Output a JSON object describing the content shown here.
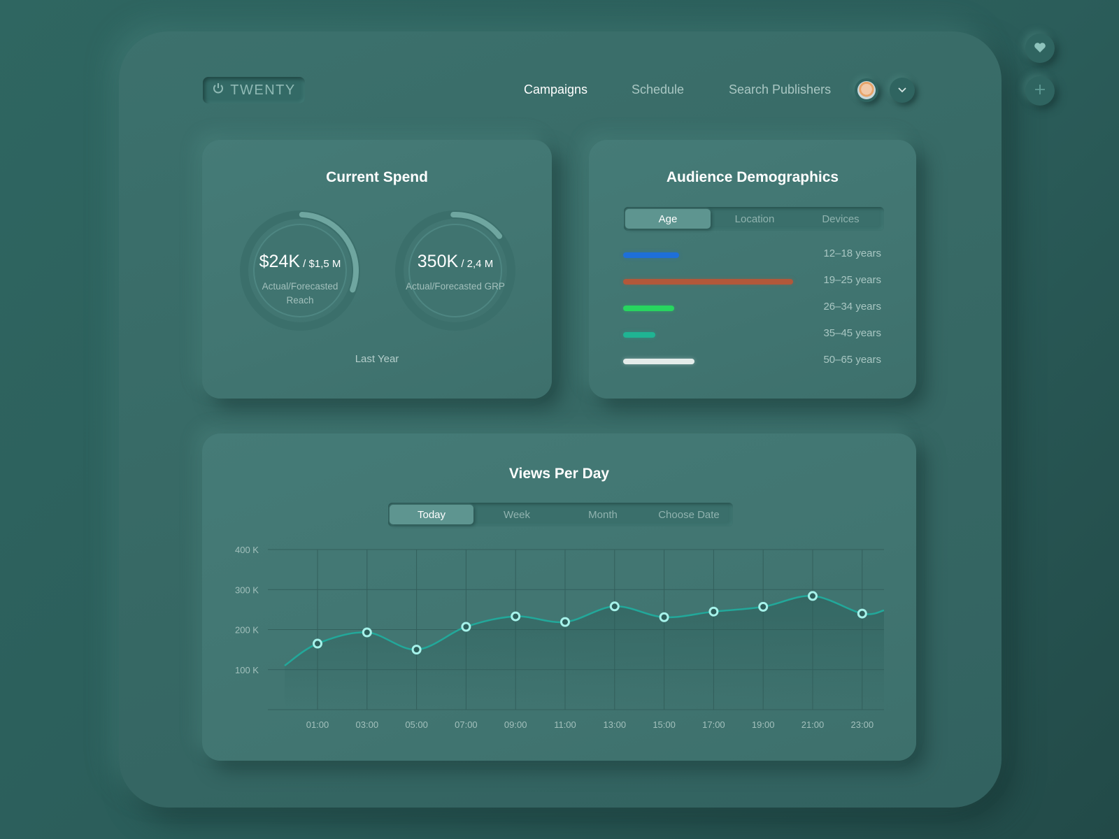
{
  "app": {
    "logo": "TWENTY"
  },
  "nav": {
    "items": [
      {
        "label": "Campaigns",
        "active": true
      },
      {
        "label": "Schedule",
        "active": false
      },
      {
        "label": "Search Publishers",
        "active": false
      }
    ]
  },
  "side_icons": [
    "heart-icon",
    "plus-icon"
  ],
  "current_spend": {
    "title": "Current Spend",
    "reach": {
      "value": "$24K",
      "total": " / $1,5 M",
      "label": "Actual/Forecasted Reach",
      "progress": 0.3
    },
    "grp": {
      "value": "350K",
      "total": " / 2,4 M",
      "label": "Actual/Forecasted GRP",
      "progress": 0.15
    },
    "period": "Last Year"
  },
  "demographics": {
    "title": "Audience Demographics",
    "tabs": [
      {
        "label": "Age",
        "active": true
      },
      {
        "label": "Location",
        "active": false
      },
      {
        "label": "Devices",
        "active": false
      }
    ],
    "rows": [
      {
        "label": "12–18 years",
        "value": 0.33,
        "color": "#1e6fd9"
      },
      {
        "label": "19–25 years",
        "value": 1.0,
        "color": "#b2583a"
      },
      {
        "label": "26–34 years",
        "value": 0.3,
        "color": "#27d65f"
      },
      {
        "label": "35–45 years",
        "value": 0.19,
        "color": "#1fb493"
      },
      {
        "label": "50–65 years",
        "value": 0.42,
        "color": "#e4ecea"
      }
    ]
  },
  "views": {
    "title": "Views Per Day",
    "tabs": [
      {
        "label": "Today",
        "active": true
      },
      {
        "label": "Week",
        "active": false
      },
      {
        "label": "Month",
        "active": false
      },
      {
        "label": "Choose Date",
        "active": false
      }
    ]
  },
  "chart_data": {
    "type": "line",
    "x": [
      "01:00",
      "03:00",
      "05:00",
      "07:00",
      "09:00",
      "11:00",
      "13:00",
      "15:00",
      "17:00",
      "19:00",
      "21:00",
      "23:00"
    ],
    "values": [
      165,
      193,
      150,
      207,
      233,
      219,
      258,
      231,
      245,
      257,
      284,
      240
    ],
    "y_ticks": [
      {
        "value": 400,
        "label": "400 K"
      },
      {
        "value": 300,
        "label": "300 K"
      },
      {
        "value": 200,
        "label": "200 K"
      },
      {
        "value": 100,
        "label": "100 K"
      }
    ],
    "ylim": [
      0,
      400
    ],
    "line_color": "#22a89a",
    "grid": true
  }
}
